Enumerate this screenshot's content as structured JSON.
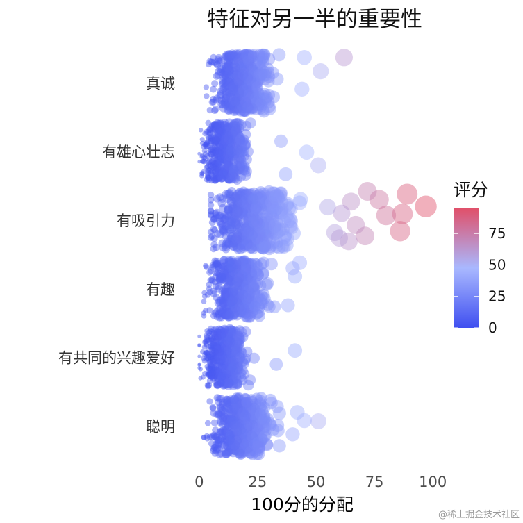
{
  "chart_data": {
    "type": "scatter",
    "subtype": "jitter",
    "title": "特征对另一半的重要性",
    "xlabel": "100分的分配",
    "ylabel": "",
    "xlim": [
      -5,
      105
    ],
    "x_ticks": [
      0,
      25,
      50,
      75,
      100
    ],
    "categories": [
      "真诚",
      "有雄心壮志",
      "有吸引力",
      "有趣",
      "有共同的兴趣爱好",
      "聪明"
    ],
    "grid": false,
    "point_size_encodes": "评分",
    "color_scale": {
      "title": "评分",
      "ticks": [
        0,
        25,
        50,
        75
      ],
      "range": [
        0,
        95
      ],
      "low_color": "#3f4ff0",
      "mid_color": "#a9b8ff",
      "high_color": "#e0506a",
      "legend_position": "right"
    },
    "series": [
      {
        "category": "真诚",
        "core_range": [
          3,
          35
        ],
        "typical": 18,
        "outliers": [
          {
            "x": 62,
            "y_offset": -0.37
          },
          {
            "x": 52,
            "y_offset": -0.17
          },
          {
            "x": 45,
            "y_offset": -0.37
          },
          {
            "x": 44,
            "y_offset": 0.09
          },
          {
            "x": 28,
            "y_offset": 0.16
          }
        ]
      },
      {
        "category": "有雄心壮志",
        "core_range": [
          0,
          26
        ],
        "typical": 10,
        "outliers": [
          {
            "x": 46,
            "y_offset": 0.01
          },
          {
            "x": 51,
            "y_offset": 0.2
          },
          {
            "x": 35,
            "y_offset": -0.15
          },
          {
            "x": 37,
            "y_offset": 0.33
          }
        ]
      },
      {
        "category": "有吸引力",
        "core_range": [
          5,
          52
        ],
        "typical": 22,
        "outliers": [
          {
            "x": 97,
            "y_offset": -0.2
          },
          {
            "x": 89,
            "y_offset": -0.38
          },
          {
            "x": 87,
            "y_offset": -0.09
          },
          {
            "x": 86,
            "y_offset": 0.16
          },
          {
            "x": 77,
            "y_offset": -0.3
          },
          {
            "x": 72,
            "y_offset": -0.42
          },
          {
            "x": 71,
            "y_offset": 0.23
          },
          {
            "x": 80,
            "y_offset": -0.07
          },
          {
            "x": 65,
            "y_offset": -0.27
          },
          {
            "x": 64,
            "y_offset": 0.31
          },
          {
            "x": 67,
            "y_offset": 0.07
          },
          {
            "x": 61,
            "y_offset": -0.1
          },
          {
            "x": 58,
            "y_offset": 0.18
          },
          {
            "x": 55,
            "y_offset": -0.19
          },
          {
            "x": 60,
            "y_offset": 0.26
          },
          {
            "x": 14,
            "y_offset": 0.12
          },
          {
            "x": 16,
            "y_offset": 0.28
          }
        ]
      },
      {
        "category": "有趣",
        "core_range": [
          2,
          34
        ],
        "typical": 16,
        "outliers": [
          {
            "x": 43,
            "y_offset": -0.38
          },
          {
            "x": 41,
            "y_offset": -0.18
          },
          {
            "x": 38,
            "y_offset": 0.24
          },
          {
            "x": 40,
            "y_offset": -0.3
          }
        ]
      },
      {
        "category": "有共同的兴趣爱好",
        "core_range": [
          0,
          26
        ],
        "typical": 10,
        "outliers": [
          {
            "x": 41,
            "y_offset": -0.1
          },
          {
            "x": 33,
            "y_offset": 0.1
          }
        ]
      },
      {
        "category": "聪明",
        "core_range": [
          2,
          38
        ],
        "typical": 18,
        "outliers": [
          {
            "x": 51,
            "y_offset": -0.07
          },
          {
            "x": 45,
            "y_offset": -0.08
          },
          {
            "x": 42,
            "y_offset": -0.2
          },
          {
            "x": 40,
            "y_offset": 0.12
          }
        ]
      }
    ],
    "watermark": "@稀土掘金技术社区"
  },
  "colors": {
    "low": "#3f4ff0",
    "mid": "#a9b8ff",
    "high": "#e0506a",
    "text": "#333333"
  }
}
